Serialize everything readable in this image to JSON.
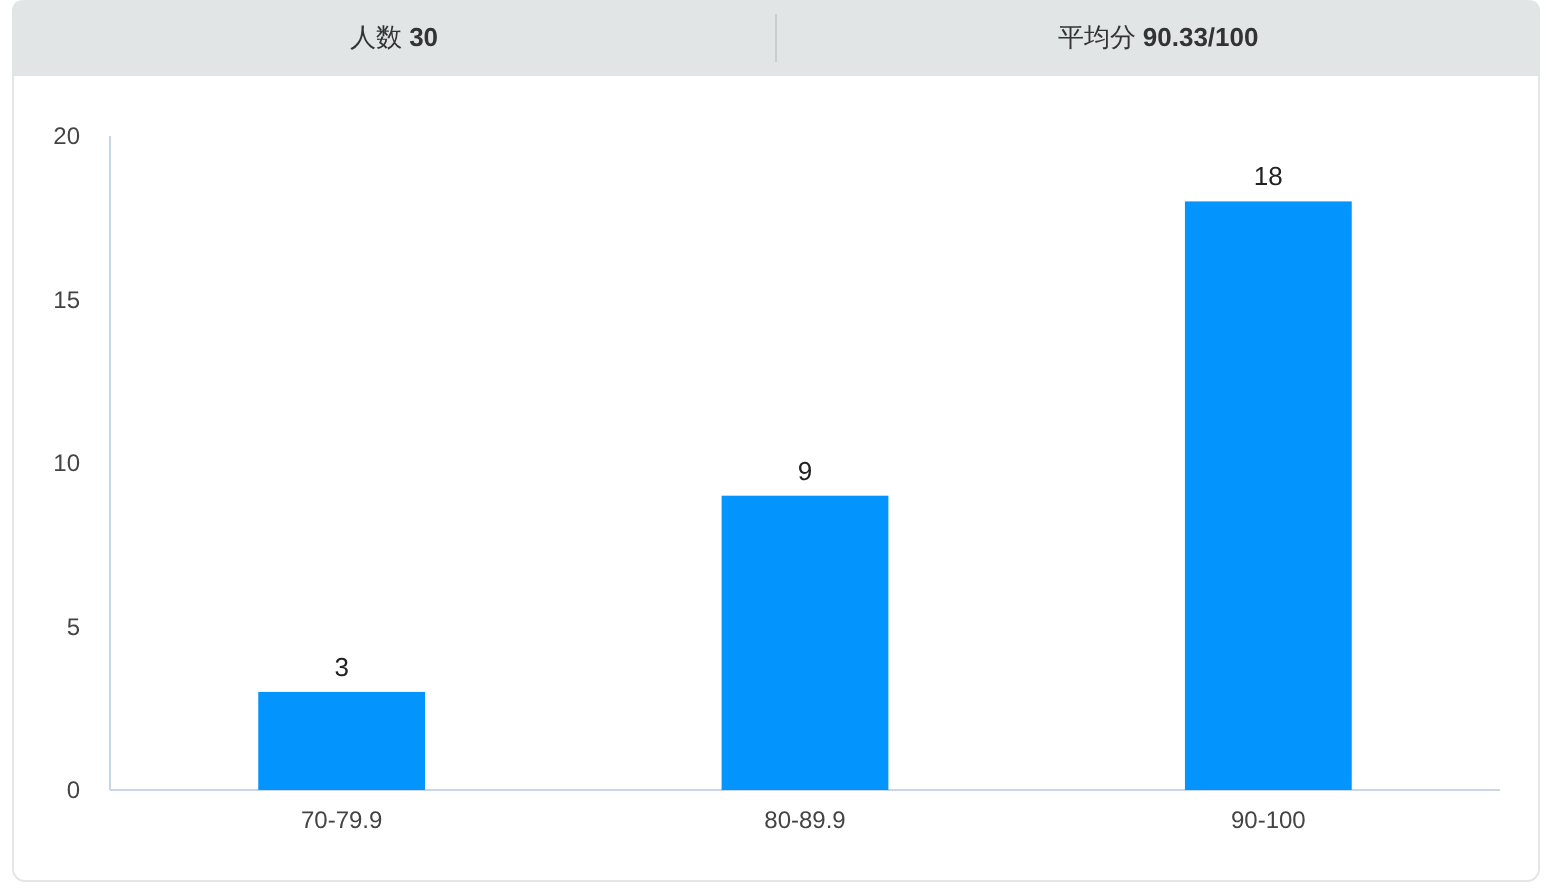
{
  "chart_data": {
    "type": "bar",
    "annotations": [
      "人数 30",
      "平均分 90.33/100"
    ],
    "categories": [
      "70-79.9",
      "80-89.9",
      "90-100"
    ],
    "values": [
      3,
      9,
      18
    ],
    "color": "#0494fe",
    "ylim": [
      0,
      20
    ],
    "yticks": [
      0,
      5,
      10,
      15,
      20
    ],
    "data_labels": true
  }
}
